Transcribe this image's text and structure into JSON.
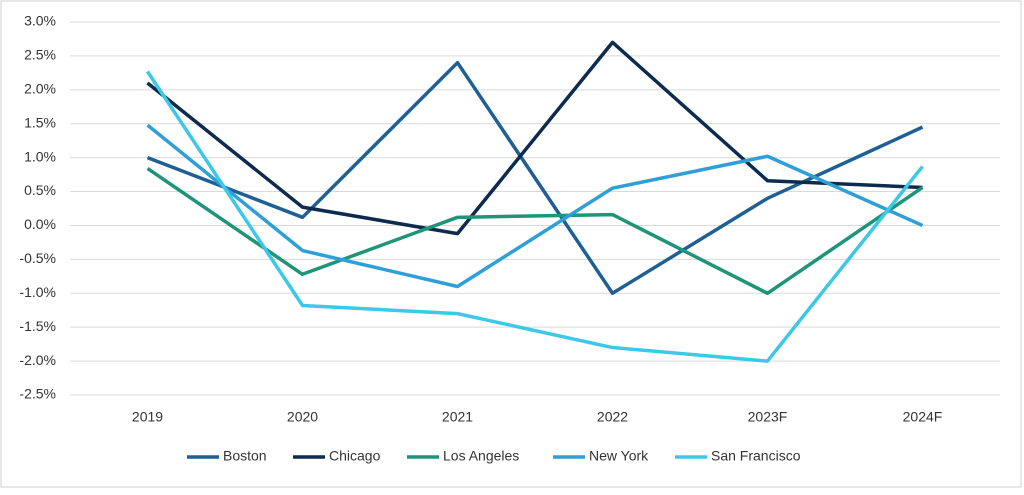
{
  "chart_data": {
    "type": "line",
    "categories": [
      "2019",
      "2020",
      "2021",
      "2022",
      "2023F",
      "2024F"
    ],
    "series": [
      {
        "name": "Boston",
        "color": "#1f5f94",
        "values": [
          1.0,
          0.12,
          2.4,
          -1.0,
          0.4,
          1.45
        ]
      },
      {
        "name": "Chicago",
        "color": "#0d2b4e",
        "values": [
          2.1,
          0.27,
          -0.12,
          2.7,
          0.66,
          0.56
        ]
      },
      {
        "name": "Los Angeles",
        "color": "#1e9478",
        "values": [
          0.84,
          -0.72,
          0.12,
          0.16,
          -1.0,
          0.56
        ]
      },
      {
        "name": "New York",
        "color": "#2e9fd8",
        "values": [
          1.48,
          -0.37,
          -0.9,
          0.55,
          1.02,
          0.0
        ]
      },
      {
        "name": "San Francisco",
        "color": "#3cc8e8",
        "values": [
          2.27,
          -1.18,
          -1.3,
          -1.8,
          -2.0,
          0.87
        ]
      }
    ],
    "ylim": [
      -2.5,
      3.0
    ],
    "yticks": [
      {
        "value": 3.0,
        "label": "3.0%"
      },
      {
        "value": 2.5,
        "label": "2.5%"
      },
      {
        "value": 2.0,
        "label": "2.0%"
      },
      {
        "value": 1.5,
        "label": "1.5%"
      },
      {
        "value": 1.0,
        "label": "1.0%"
      },
      {
        "value": 0.5,
        "label": "0.5%"
      },
      {
        "value": 0.0,
        "label": "0.0%"
      },
      {
        "value": -0.5,
        "label": "-0.5%"
      },
      {
        "value": -1.0,
        "label": "-1.0%"
      },
      {
        "value": -1.5,
        "label": "-1.5%"
      },
      {
        "value": -2.0,
        "label": "-2.0%"
      },
      {
        "value": -2.5,
        "label": "-2.5%"
      }
    ],
    "grid": true
  }
}
